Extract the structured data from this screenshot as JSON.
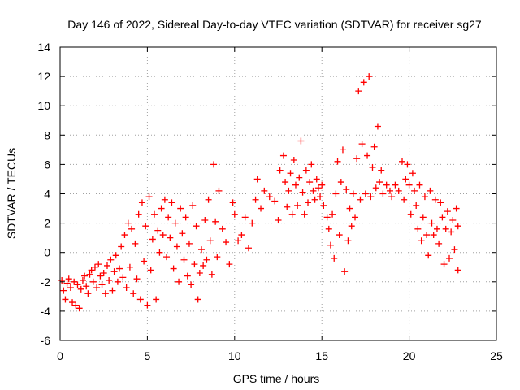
{
  "chart_data": {
    "type": "scatter",
    "title": "Day 146 of 2022, Sidereal Day-to-day VTEC variation (SDTVAR) for receiver sg27",
    "xlabel": "GPS time / hours",
    "ylabel": "SDTVAR / TECUs",
    "xlim": [
      0,
      25
    ],
    "ylim": [
      -6,
      14
    ],
    "xticks": [
      0,
      5,
      10,
      15,
      20,
      25
    ],
    "yticks": [
      -6,
      -4,
      -2,
      0,
      2,
      4,
      6,
      8,
      10,
      12,
      14
    ],
    "grid": true,
    "marker": "+",
    "color": "#ff0000",
    "series": [
      {
        "name": "SDTVAR sg27",
        "points": [
          [
            0.1,
            -1.9
          ],
          [
            0.2,
            -2.6
          ],
          [
            0.3,
            -3.2
          ],
          [
            0.4,
            -2.1
          ],
          [
            0.5,
            -1.8
          ],
          [
            0.6,
            -2.4
          ],
          [
            0.7,
            -3.4
          ],
          [
            0.8,
            -2.0
          ],
          [
            0.9,
            -3.6
          ],
          [
            1.0,
            -2.2
          ],
          [
            1.1,
            -3.8
          ],
          [
            1.2,
            -2.5
          ],
          [
            1.3,
            -1.9
          ],
          [
            1.4,
            -1.6
          ],
          [
            1.5,
            -2.3
          ],
          [
            1.6,
            -2.8
          ],
          [
            1.7,
            -1.5
          ],
          [
            1.8,
            -1.2
          ],
          [
            1.9,
            -2.0
          ],
          [
            2.0,
            -1.0
          ],
          [
            2.1,
            -2.4
          ],
          [
            2.2,
            -0.8
          ],
          [
            2.3,
            -1.6
          ],
          [
            2.4,
            -2.2
          ],
          [
            2.5,
            -1.4
          ],
          [
            2.6,
            -2.8
          ],
          [
            2.7,
            -0.9
          ],
          [
            2.8,
            -1.9
          ],
          [
            2.9,
            -0.5
          ],
          [
            3.0,
            -2.6
          ],
          [
            3.1,
            -1.3
          ],
          [
            3.2,
            -0.2
          ],
          [
            3.3,
            -2.0
          ],
          [
            3.4,
            -1.1
          ],
          [
            3.5,
            0.4
          ],
          [
            3.6,
            -1.7
          ],
          [
            3.7,
            1.2
          ],
          [
            3.8,
            -2.4
          ],
          [
            3.9,
            2.0
          ],
          [
            4.0,
            -1.0
          ],
          [
            4.1,
            1.6
          ],
          [
            4.2,
            -2.8
          ],
          [
            4.3,
            0.6
          ],
          [
            4.4,
            -1.8
          ],
          [
            4.5,
            2.6
          ],
          [
            4.6,
            -3.2
          ],
          [
            4.7,
            3.4
          ],
          [
            4.8,
            -0.6
          ],
          [
            4.9,
            1.8
          ],
          [
            5.0,
            -3.6
          ],
          [
            5.1,
            3.8
          ],
          [
            5.2,
            -1.2
          ],
          [
            5.3,
            0.9
          ],
          [
            5.4,
            2.6
          ],
          [
            5.5,
            -3.2
          ],
          [
            5.6,
            1.5
          ],
          [
            5.7,
            0.0
          ],
          [
            5.8,
            3.0
          ],
          [
            5.9,
            1.2
          ],
          [
            6.0,
            3.6
          ],
          [
            6.1,
            -0.3
          ],
          [
            6.2,
            2.4
          ],
          [
            6.3,
            1.0
          ],
          [
            6.4,
            3.4
          ],
          [
            6.5,
            -1.1
          ],
          [
            6.6,
            2.0
          ],
          [
            6.7,
            0.4
          ],
          [
            6.8,
            -2.0
          ],
          [
            6.9,
            3.0
          ],
          [
            7.0,
            1.3
          ],
          [
            7.1,
            -0.5
          ],
          [
            7.2,
            2.4
          ],
          [
            7.3,
            -1.6
          ],
          [
            7.4,
            0.6
          ],
          [
            7.5,
            -2.2
          ],
          [
            7.6,
            3.2
          ],
          [
            7.7,
            -0.8
          ],
          [
            7.8,
            1.8
          ],
          [
            7.9,
            -3.2
          ],
          [
            8.0,
            -1.4
          ],
          [
            8.1,
            0.2
          ],
          [
            8.2,
            -0.9
          ],
          [
            8.3,
            2.2
          ],
          [
            8.4,
            -0.5
          ],
          [
            8.5,
            3.6
          ],
          [
            8.6,
            0.8
          ],
          [
            8.7,
            -1.5
          ],
          [
            8.8,
            6.0
          ],
          [
            8.9,
            2.1
          ],
          [
            9.0,
            -0.3
          ],
          [
            9.1,
            4.2
          ],
          [
            9.3,
            1.6
          ],
          [
            9.5,
            0.7
          ],
          [
            9.7,
            -0.8
          ],
          [
            9.9,
            3.4
          ],
          [
            10.0,
            2.6
          ],
          [
            10.2,
            0.8
          ],
          [
            10.4,
            1.2
          ],
          [
            10.6,
            2.4
          ],
          [
            10.8,
            0.3
          ],
          [
            11.0,
            2.0
          ],
          [
            11.2,
            3.6
          ],
          [
            11.3,
            5.0
          ],
          [
            11.5,
            3.0
          ],
          [
            11.7,
            4.2
          ],
          [
            12.0,
            3.8
          ],
          [
            12.3,
            3.5
          ],
          [
            12.5,
            2.2
          ],
          [
            12.6,
            5.6
          ],
          [
            12.8,
            6.6
          ],
          [
            12.9,
            4.8
          ],
          [
            13.0,
            3.1
          ],
          [
            13.1,
            4.2
          ],
          [
            13.2,
            5.4
          ],
          [
            13.3,
            2.6
          ],
          [
            13.4,
            6.3
          ],
          [
            13.5,
            4.6
          ],
          [
            13.6,
            3.2
          ],
          [
            13.7,
            5.1
          ],
          [
            13.8,
            7.6
          ],
          [
            13.9,
            4.1
          ],
          [
            14.0,
            2.6
          ],
          [
            14.1,
            5.6
          ],
          [
            14.2,
            3.4
          ],
          [
            14.3,
            4.8
          ],
          [
            14.4,
            6.0
          ],
          [
            14.5,
            4.2
          ],
          [
            14.6,
            3.6
          ],
          [
            14.7,
            5.0
          ],
          [
            14.8,
            4.4
          ],
          [
            14.9,
            3.8
          ],
          [
            15.0,
            4.6
          ],
          [
            15.1,
            3.2
          ],
          [
            15.3,
            2.4
          ],
          [
            15.4,
            1.6
          ],
          [
            15.5,
            0.5
          ],
          [
            15.6,
            2.6
          ],
          [
            15.7,
            -0.4
          ],
          [
            15.8,
            4.0
          ],
          [
            15.9,
            6.2
          ],
          [
            16.0,
            1.2
          ],
          [
            16.1,
            4.8
          ],
          [
            16.2,
            7.0
          ],
          [
            16.3,
            -1.3
          ],
          [
            16.4,
            4.3
          ],
          [
            16.5,
            0.8
          ],
          [
            16.6,
            3.0
          ],
          [
            16.7,
            1.8
          ],
          [
            16.8,
            4.0
          ],
          [
            16.9,
            2.4
          ],
          [
            17.0,
            6.4
          ],
          [
            17.1,
            11.0
          ],
          [
            17.2,
            3.6
          ],
          [
            17.3,
            7.4
          ],
          [
            17.4,
            11.6
          ],
          [
            17.5,
            4.0
          ],
          [
            17.6,
            6.6
          ],
          [
            17.7,
            12.0
          ],
          [
            17.8,
            3.8
          ],
          [
            17.9,
            5.8
          ],
          [
            18.0,
            7.2
          ],
          [
            18.1,
            4.4
          ],
          [
            18.2,
            8.6
          ],
          [
            18.3,
            4.8
          ],
          [
            18.4,
            5.6
          ],
          [
            18.5,
            4.0
          ],
          [
            18.7,
            4.6
          ],
          [
            18.9,
            4.2
          ],
          [
            19.0,
            3.8
          ],
          [
            19.2,
            4.6
          ],
          [
            19.4,
            4.2
          ],
          [
            19.6,
            6.2
          ],
          [
            19.7,
            3.6
          ],
          [
            19.8,
            5.0
          ],
          [
            19.9,
            6.0
          ],
          [
            20.0,
            4.6
          ],
          [
            20.1,
            2.6
          ],
          [
            20.2,
            5.4
          ],
          [
            20.3,
            4.2
          ],
          [
            20.4,
            3.2
          ],
          [
            20.5,
            1.6
          ],
          [
            20.6,
            4.6
          ],
          [
            20.7,
            0.8
          ],
          [
            20.8,
            2.4
          ],
          [
            20.9,
            3.8
          ],
          [
            21.0,
            1.2
          ],
          [
            21.1,
            -0.2
          ],
          [
            21.2,
            4.2
          ],
          [
            21.3,
            2.0
          ],
          [
            21.4,
            1.2
          ],
          [
            21.5,
            3.6
          ],
          [
            21.6,
            1.6
          ],
          [
            21.7,
            0.6
          ],
          [
            21.8,
            3.4
          ],
          [
            21.9,
            2.4
          ],
          [
            22.0,
            -0.8
          ],
          [
            22.1,
            1.6
          ],
          [
            22.2,
            2.8
          ],
          [
            22.3,
            -0.4
          ],
          [
            22.4,
            1.4
          ],
          [
            22.5,
            2.2
          ],
          [
            22.6,
            0.2
          ],
          [
            22.7,
            3.0
          ],
          [
            22.8,
            -1.2
          ],
          [
            22.8,
            1.8
          ]
        ]
      }
    ]
  }
}
